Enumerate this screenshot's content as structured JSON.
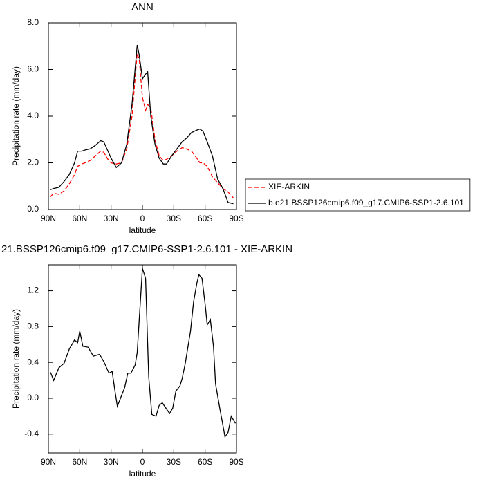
{
  "chart_data": [
    {
      "type": "line",
      "title": "ANN",
      "xlabel": "latitude",
      "ylabel": "Precipitation rate (mm/day)",
      "x": [
        88,
        85,
        80,
        75,
        70,
        65,
        62,
        58,
        55,
        50,
        45,
        40,
        37,
        33,
        30,
        25,
        20,
        15,
        10,
        5,
        3,
        0,
        -3,
        -5,
        -8,
        -12,
        -16,
        -20,
        -23,
        -28,
        -33,
        -38,
        -42,
        -47,
        -52,
        -55,
        -58,
        -62,
        -67,
        -72,
        -77,
        -82,
        -87
      ],
      "series": [
        {
          "name": "XIE-ARKIN",
          "color": "#ff0000",
          "dash": "dashed",
          "values": [
            0.55,
            0.7,
            0.65,
            0.8,
            1.1,
            1.5,
            1.85,
            1.95,
            2.0,
            2.1,
            2.3,
            2.5,
            2.45,
            2.15,
            2.0,
            1.95,
            2.0,
            2.6,
            4.0,
            6.7,
            6.4,
            4.8,
            4.25,
            4.5,
            4.35,
            3.0,
            2.3,
            2.1,
            2.15,
            2.3,
            2.5,
            2.65,
            2.6,
            2.5,
            2.2,
            2.0,
            2.0,
            1.85,
            1.4,
            1.15,
            0.9,
            0.75,
            0.5
          ]
        },
        {
          "name": "b.e21.BSSP126cmip6.f09_g17.CMIP6-SSP1-2.6.101",
          "color": "#000000",
          "dash": "solid",
          "values": [
            0.85,
            0.9,
            0.95,
            1.2,
            1.5,
            2.0,
            2.5,
            2.5,
            2.55,
            2.6,
            2.75,
            2.95,
            2.9,
            2.5,
            2.2,
            1.8,
            2.0,
            2.8,
            4.5,
            7.05,
            6.6,
            5.6,
            5.8,
            5.9,
            4.0,
            2.8,
            2.2,
            1.95,
            1.95,
            2.3,
            2.6,
            2.9,
            3.05,
            3.3,
            3.4,
            3.45,
            3.35,
            2.9,
            2.3,
            1.3,
            0.9,
            0.3,
            0.25
          ]
        }
      ],
      "xlim": [
        90,
        -90
      ],
      "xticks": [
        {
          "value": 90,
          "label": "90N"
        },
        {
          "value": 60,
          "label": "60N"
        },
        {
          "value": 30,
          "label": "30N"
        },
        0,
        {
          "value": -30,
          "label": "30S"
        },
        {
          "value": -60,
          "label": "60S"
        },
        {
          "value": -90,
          "label": "90S"
        }
      ],
      "ylim": [
        0,
        8
      ],
      "yticks": [
        {
          "value": 0,
          "label": "0.0"
        },
        {
          "value": 2,
          "label": "2.0"
        },
        {
          "value": 4,
          "label": "4.0"
        },
        {
          "value": 6,
          "label": "6.0"
        },
        {
          "value": 8,
          "label": "8.0"
        }
      ],
      "legend": "right"
    },
    {
      "type": "line",
      "title": "21.BSSP126cmip6.f09_g17.CMIP6-SSP1-2.6.101 - XIE-ARKIN",
      "xlabel": "latitude",
      "ylabel": "Precipitation rate (mm/day)",
      "x": [
        88,
        85,
        80,
        75,
        70,
        65,
        62,
        60,
        57,
        52,
        47,
        41,
        37,
        32,
        29,
        26,
        24,
        20,
        17,
        14,
        11,
        7,
        5,
        3,
        0,
        -3,
        -6,
        -9,
        -13,
        -16,
        -19,
        -23,
        -26,
        -29,
        -32,
        -36,
        -38,
        -41,
        -46,
        -49,
        -52,
        -54,
        -57,
        -60,
        -62,
        -65,
        -68,
        -70,
        -74,
        -77,
        -79,
        -82,
        -85,
        -89
      ],
      "series": [
        {
          "color": "#000000",
          "dash": "solid",
          "values": [
            0.29,
            0.2,
            0.34,
            0.39,
            0.55,
            0.65,
            0.62,
            0.75,
            0.58,
            0.57,
            0.47,
            0.49,
            0.41,
            0.28,
            0.3,
            0.06,
            -0.09,
            0.03,
            0.12,
            0.28,
            0.28,
            0.37,
            0.51,
            0.89,
            1.45,
            1.34,
            0.24,
            -0.18,
            -0.2,
            -0.08,
            -0.05,
            -0.12,
            -0.17,
            -0.11,
            0.08,
            0.14,
            0.22,
            0.39,
            0.75,
            1.08,
            1.28,
            1.38,
            1.34,
            1.05,
            0.82,
            0.88,
            0.58,
            0.16,
            -0.11,
            -0.3,
            -0.43,
            -0.38,
            -0.2,
            -0.28
          ]
        }
      ],
      "xlim": [
        90,
        -90
      ],
      "xticks": [
        {
          "value": 90,
          "label": "90N"
        },
        {
          "value": 60,
          "label": "60N"
        },
        {
          "value": 30,
          "label": "30N"
        },
        0,
        {
          "value": -30,
          "label": "30S"
        },
        {
          "value": -60,
          "label": "60S"
        },
        {
          "value": -90,
          "label": "90S"
        }
      ],
      "ylim": [
        -0.61,
        1.49
      ],
      "yticks": [
        -0.4,
        {
          "value": 0,
          "label": "0.0"
        },
        0.4,
        0.8,
        1.2
      ]
    }
  ]
}
